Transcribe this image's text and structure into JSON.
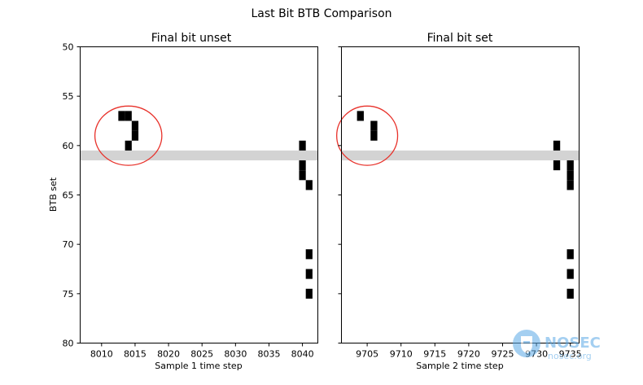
{
  "suptitle": "Last Bit BTB Comparison",
  "watermark": {
    "text": "NOSEC",
    "subtext": "nosec.org",
    "color": "#5aa9e6"
  },
  "colors": {
    "mark": "#000000",
    "band": "#d3d3d3",
    "circle": "#e8312a",
    "axis": "#000000"
  },
  "chart_data": [
    {
      "type": "heatmap",
      "title": "Final bit unset",
      "xlabel": "Sample 1 time step",
      "ylabel": "BTB set",
      "xlim": [
        8006.8,
        8042.3
      ],
      "ylim": [
        80,
        50
      ],
      "y_inverted": true,
      "xticks": [
        8010,
        8015,
        8020,
        8025,
        8030,
        8035,
        8040
      ],
      "yticks": [
        50,
        55,
        60,
        65,
        70,
        75,
        80
      ],
      "highlight_band": {
        "y_from": 60.5,
        "y_to": 61.5
      },
      "circle": {
        "x": 8014,
        "y": 59,
        "rx": 5,
        "ry": 3
      },
      "cells": [
        {
          "x": 8013,
          "y": 57
        },
        {
          "x": 8014,
          "y": 57
        },
        {
          "x": 8015,
          "y": 58
        },
        {
          "x": 8015,
          "y": 59
        },
        {
          "x": 8014,
          "y": 60
        },
        {
          "x": 8040,
          "y": 60
        },
        {
          "x": 8040,
          "y": 62
        },
        {
          "x": 8040,
          "y": 63
        },
        {
          "x": 8041,
          "y": 64
        },
        {
          "x": 8041,
          "y": 71
        },
        {
          "x": 8041,
          "y": 73
        },
        {
          "x": 8041,
          "y": 75
        }
      ]
    },
    {
      "type": "heatmap",
      "title": "Final bit set",
      "xlabel": "Sample 2 time step",
      "ylabel": "",
      "xlim": [
        9701.2,
        9736.3
      ],
      "ylim": [
        80,
        50
      ],
      "y_inverted": true,
      "xticks": [
        9705,
        9710,
        9715,
        9720,
        9725,
        9730,
        9735
      ],
      "yticks": [
        50,
        55,
        60,
        65,
        70,
        75,
        80
      ],
      "highlight_band": {
        "y_from": 60.5,
        "y_to": 61.5
      },
      "circle": {
        "x": 9705,
        "y": 59,
        "rx": 4.5,
        "ry": 3
      },
      "cells": [
        {
          "x": 9704,
          "y": 57
        },
        {
          "x": 9706,
          "y": 58
        },
        {
          "x": 9706,
          "y": 59
        },
        {
          "x": 9733,
          "y": 60
        },
        {
          "x": 9733,
          "y": 62
        },
        {
          "x": 9735,
          "y": 62
        },
        {
          "x": 9735,
          "y": 63
        },
        {
          "x": 9735,
          "y": 64
        },
        {
          "x": 9735,
          "y": 71
        },
        {
          "x": 9735,
          "y": 73
        },
        {
          "x": 9735,
          "y": 75
        }
      ]
    }
  ]
}
